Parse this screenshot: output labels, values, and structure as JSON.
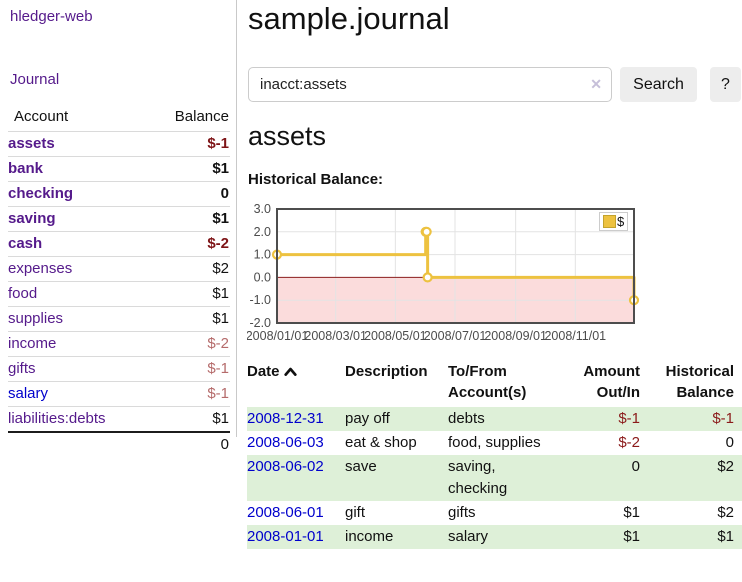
{
  "app": {
    "brand": "hledger-web"
  },
  "sidebar": {
    "nav": {
      "journal": "Journal"
    },
    "table": {
      "headers": {
        "account": "Account",
        "balance": "Balance"
      },
      "accounts": [
        {
          "name": "assets",
          "balance": "$-1",
          "depth": 1,
          "bold": true,
          "balance_style": "neg-strong"
        },
        {
          "name": "bank",
          "balance": "$1",
          "depth": 2,
          "bold": true,
          "balance_style": ""
        },
        {
          "name": "checking",
          "balance": "0",
          "depth": 3,
          "bold": true,
          "balance_style": ""
        },
        {
          "name": "saving",
          "balance": "$1",
          "depth": 3,
          "bold": true,
          "balance_style": ""
        },
        {
          "name": "cash",
          "balance": "$-2",
          "depth": 2,
          "bold": true,
          "balance_style": "neg-strong"
        },
        {
          "name": "expenses",
          "balance": "$2",
          "depth": 1,
          "bold": false,
          "balance_style": ""
        },
        {
          "name": "food",
          "balance": "$1",
          "depth": 2,
          "bold": false,
          "balance_style": ""
        },
        {
          "name": "supplies",
          "balance": "$1",
          "depth": 2,
          "bold": false,
          "balance_style": ""
        },
        {
          "name": "income",
          "balance": "$-2",
          "depth": 1,
          "bold": false,
          "balance_style": "neg-soft"
        },
        {
          "name": "gifts",
          "balance": "$-1",
          "depth": 2,
          "bold": false,
          "balance_style": "neg-soft"
        },
        {
          "name": "salary",
          "balance": "$-1",
          "depth": 2,
          "bold": false,
          "balance_style": "neg-soft",
          "link_style": "blue"
        },
        {
          "name": "liabilities:debts",
          "balance": "$1",
          "depth": 1,
          "bold": false,
          "balance_style": ""
        }
      ],
      "total": "0"
    }
  },
  "main": {
    "title": "sample.journal",
    "search": {
      "value": "inacct:assets",
      "clear_icon": "✕",
      "button": "Search",
      "help_button": "?"
    },
    "account_heading": "assets",
    "chart_heading": "Historical Balance:"
  },
  "register": {
    "headers": {
      "date": "Date",
      "description": "Description",
      "accounts": "To/From Account(s)",
      "amount": "Amount Out/In",
      "balance": "Historical Balance"
    },
    "rows": [
      {
        "date": "2008-12-31",
        "description": "pay off",
        "accounts": "debts",
        "amount": "$-1",
        "amount_neg": true,
        "balance": "$-1",
        "balance_neg": true
      },
      {
        "date": "2008-06-03",
        "description": "eat & shop",
        "accounts": "food, supplies",
        "amount": "$-2",
        "amount_neg": true,
        "balance": "0",
        "balance_neg": false
      },
      {
        "date": "2008-06-02",
        "description": "save",
        "accounts": "saving, checking",
        "amount": "0",
        "amount_neg": false,
        "balance": "$2",
        "balance_neg": false
      },
      {
        "date": "2008-06-01",
        "description": "gift",
        "accounts": "gifts",
        "amount": "$1",
        "amount_neg": false,
        "balance": "$2",
        "balance_neg": false
      },
      {
        "date": "2008-01-01",
        "description": "income",
        "accounts": "salary",
        "amount": "$1",
        "amount_neg": false,
        "balance": "$1",
        "balance_neg": false
      }
    ]
  },
  "chart_data": {
    "type": "line",
    "title": "Historical Balance",
    "x_range": [
      "2008-01-01",
      "2008-12-31"
    ],
    "ylim": [
      -2,
      3
    ],
    "y_ticks": [
      "3.0",
      "2.0",
      "1.0",
      "0.0",
      "-1.0",
      "-2.0"
    ],
    "x_ticks": [
      {
        "label": "2008/01/01",
        "date": "2008-01-01"
      },
      {
        "label": "2008/03/01",
        "date": "2008-03-01"
      },
      {
        "label": "2008/05/01",
        "date": "2008-05-01"
      },
      {
        "label": "2008/07/01",
        "date": "2008-07-01"
      },
      {
        "label": "2008/09/01",
        "date": "2008-09-01"
      },
      {
        "label": "2008/11/01",
        "date": "2008-11-01"
      }
    ],
    "series": [
      {
        "name": "$",
        "color": "#edc240",
        "step": true,
        "points": [
          [
            "2008-01-01",
            1
          ],
          [
            "2008-06-01",
            2
          ],
          [
            "2008-06-02",
            2
          ],
          [
            "2008-06-03",
            0
          ],
          [
            "2008-12-31",
            -1
          ]
        ]
      }
    ],
    "grid": true,
    "legend_position": "top-right",
    "colors": {
      "negative_region": "#fbdcdc",
      "zero_line": "#8b1e1e",
      "grid": "#e3e3e3",
      "border": "#4d4d4d",
      "tick_text": "#4c4c4c"
    }
  },
  "colors": {
    "link_purple": "#551a8b",
    "link_blue": "#0000cc",
    "negative_strong": "#7e1417",
    "negative_soft": "#b56b6b",
    "row_stripe_green": "#def0d8",
    "series_yellow": "#edc240"
  }
}
